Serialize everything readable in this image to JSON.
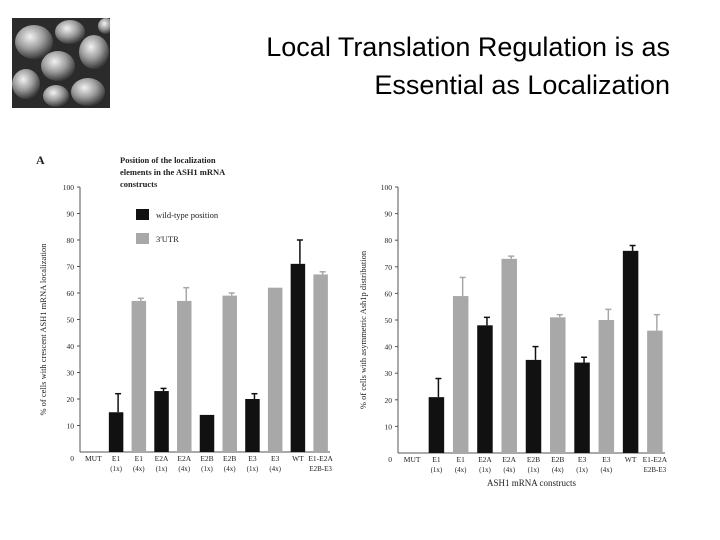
{
  "slide": {
    "title_line1": "Local Translation Regulation is as",
    "title_line2": "Essential as Localization",
    "image_icon": "yeast-cells-micrograph"
  },
  "colors": {
    "black": "#111111",
    "gray": "#a8a8a8",
    "axis": "#555555"
  },
  "chart_data": [
    {
      "type": "bar",
      "panel_label": "A",
      "ylabel": "% of cells with crescent ASH1 mRNA localization",
      "ylim": [
        0,
        100
      ],
      "yticks": [
        0,
        10,
        20,
        30,
        40,
        50,
        60,
        70,
        80,
        90,
        100
      ],
      "legend_title_line1": "Position of the localization",
      "legend_title_line2": "elements in the ASH1 mRNA",
      "legend_title_line3": "constructs",
      "legend": [
        {
          "label": "wild-type position",
          "color": "black"
        },
        {
          "label": "3'UTR",
          "color": "gray"
        }
      ],
      "xlabel": "",
      "bars": [
        {
          "cat": "MUT",
          "sub": "",
          "value": 0,
          "err": 0,
          "color": "black"
        },
        {
          "cat": "E1",
          "sub": "(1x)",
          "value": 15,
          "err": 7,
          "color": "black"
        },
        {
          "cat": "E1",
          "sub": "(4x)",
          "value": 57,
          "err": 1,
          "color": "gray"
        },
        {
          "cat": "E2A",
          "sub": "(1x)",
          "value": 23,
          "err": 1,
          "color": "black"
        },
        {
          "cat": "E2A",
          "sub": "(4x)",
          "value": 57,
          "err": 5,
          "color": "gray"
        },
        {
          "cat": "E2B",
          "sub": "(1x)",
          "value": 14,
          "err": 0,
          "color": "black"
        },
        {
          "cat": "E2B",
          "sub": "(4x)",
          "value": 59,
          "err": 1,
          "color": "gray"
        },
        {
          "cat": "E3",
          "sub": "(1x)",
          "value": 20,
          "err": 2,
          "color": "black"
        },
        {
          "cat": "E3",
          "sub": "(4x)",
          "value": 62,
          "err": 0,
          "color": "gray"
        },
        {
          "cat": "WT",
          "sub": "",
          "value": 71,
          "err": 9,
          "color": "black"
        },
        {
          "cat": "E1-E2A",
          "sub": "E2B-E3",
          "value": 67,
          "err": 1,
          "color": "gray"
        }
      ]
    },
    {
      "type": "bar",
      "panel_label": "",
      "ylabel": "% of cells with asymmetric Ash1p distribution",
      "ylim": [
        0,
        100
      ],
      "yticks": [
        0,
        10,
        20,
        30,
        40,
        50,
        60,
        70,
        80,
        90,
        100
      ],
      "legend": [],
      "xlabel": "ASH1 mRNA constructs",
      "bars": [
        {
          "cat": "MUT",
          "sub": "",
          "value": 0,
          "err": 0,
          "color": "black"
        },
        {
          "cat": "E1",
          "sub": "(1x)",
          "value": 21,
          "err": 7,
          "color": "black"
        },
        {
          "cat": "E1",
          "sub": "(4x)",
          "value": 59,
          "err": 7,
          "color": "gray"
        },
        {
          "cat": "E2A",
          "sub": "(1x)",
          "value": 48,
          "err": 3,
          "color": "black"
        },
        {
          "cat": "E2A",
          "sub": "(4x)",
          "value": 73,
          "err": 1,
          "color": "gray"
        },
        {
          "cat": "E2B",
          "sub": "(1x)",
          "value": 35,
          "err": 5,
          "color": "black"
        },
        {
          "cat": "E2B",
          "sub": "(4x)",
          "value": 51,
          "err": 1,
          "color": "gray"
        },
        {
          "cat": "E3",
          "sub": "(1x)",
          "value": 34,
          "err": 2,
          "color": "black"
        },
        {
          "cat": "E3",
          "sub": "(4x)",
          "value": 50,
          "err": 4,
          "color": "gray"
        },
        {
          "cat": "WT",
          "sub": "",
          "value": 76,
          "err": 2,
          "color": "black"
        },
        {
          "cat": "E1-E2A",
          "sub": "E2B-E3",
          "value": 46,
          "err": 6,
          "color": "gray"
        }
      ]
    }
  ]
}
